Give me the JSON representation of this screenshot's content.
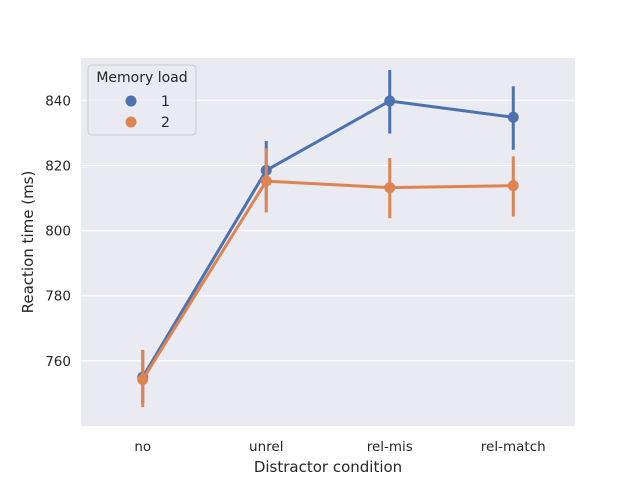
{
  "chart_data": {
    "type": "line",
    "xlabel": "Distractor condition",
    "ylabel": "Reaction time (ms)",
    "categories": [
      "no",
      "unrel",
      "rel-mis",
      "rel-match"
    ],
    "yticks": [
      760,
      780,
      800,
      820,
      840
    ],
    "ylim": [
      740,
      853
    ],
    "grid": true,
    "legend": {
      "title": "Memory load",
      "placement": "top-left"
    },
    "series": [
      {
        "name": "1",
        "color": "#4c72b0",
        "values": [
          755.0,
          818.5,
          839.8,
          834.8
        ],
        "ci_low": [
          747.0,
          809.5,
          829.8,
          824.8
        ],
        "ci_high": [
          763.0,
          827.5,
          849.3,
          844.3
        ]
      },
      {
        "name": "2",
        "color": "#dd8452",
        "values": [
          754.3,
          815.2,
          813.2,
          813.8
        ],
        "ci_low": [
          745.8,
          805.6,
          803.8,
          804.3
        ],
        "ci_high": [
          763.4,
          825.3,
          822.3,
          822.8
        ]
      }
    ],
    "background_color": "#eaeaf2",
    "grid_color": "#ffffff"
  }
}
